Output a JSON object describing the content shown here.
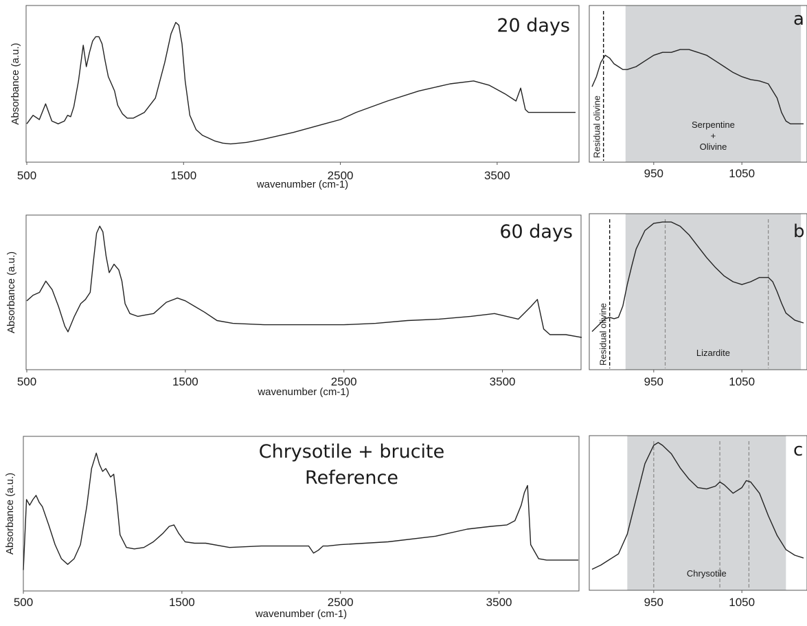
{
  "chart_data": [
    {
      "id": "p20",
      "type": "line",
      "title_lines": [
        "20 days"
      ],
      "xlabel": "wavenumber (cm-1)",
      "ylabel": "Absorbance (a.u.)",
      "xlim": [
        500,
        4000
      ],
      "ylim": [
        0,
        1
      ],
      "xticks": [
        500,
        1500,
        2500,
        3500
      ],
      "x": [
        500,
        540,
        580,
        620,
        660,
        700,
        740,
        760,
        780,
        800,
        830,
        860,
        880,
        900,
        920,
        940,
        960,
        980,
        1000,
        1020,
        1040,
        1060,
        1080,
        1110,
        1140,
        1180,
        1250,
        1320,
        1380,
        1420,
        1450,
        1470,
        1490,
        1510,
        1540,
        1580,
        1620,
        1660,
        1700,
        1750,
        1800,
        1900,
        2000,
        2200,
        2400,
        2500,
        2600,
        2800,
        3000,
        3200,
        3350,
        3450,
        3550,
        3620,
        3650,
        3680,
        3700,
        3720,
        3800,
        3900,
        4000
      ],
      "y": [
        0.22,
        0.28,
        0.25,
        0.36,
        0.24,
        0.22,
        0.24,
        0.28,
        0.27,
        0.34,
        0.52,
        0.77,
        0.62,
        0.72,
        0.8,
        0.83,
        0.83,
        0.78,
        0.66,
        0.55,
        0.5,
        0.45,
        0.35,
        0.29,
        0.26,
        0.26,
        0.3,
        0.4,
        0.65,
        0.85,
        0.93,
        0.91,
        0.78,
        0.52,
        0.28,
        0.18,
        0.14,
        0.12,
        0.1,
        0.085,
        0.08,
        0.09,
        0.11,
        0.16,
        0.22,
        0.25,
        0.3,
        0.38,
        0.45,
        0.5,
        0.52,
        0.49,
        0.43,
        0.38,
        0.47,
        0.32,
        0.3,
        0.3,
        0.3,
        0.3,
        0.3
      ]
    },
    {
      "id": "p60",
      "type": "line",
      "title_lines": [
        "60 days"
      ],
      "xlabel": "wavenumber (cm-1)",
      "ylabel": "Absorbance (a.u.)",
      "xlim": [
        500,
        4000
      ],
      "ylim": [
        0,
        1
      ],
      "xticks": [
        500,
        1500,
        2500,
        3500
      ],
      "x": [
        500,
        540,
        580,
        620,
        660,
        700,
        740,
        760,
        800,
        840,
        870,
        900,
        920,
        940,
        960,
        980,
        1000,
        1020,
        1050,
        1080,
        1100,
        1120,
        1150,
        1200,
        1250,
        1300,
        1380,
        1450,
        1500,
        1560,
        1620,
        1700,
        1800,
        2000,
        2200,
        2500,
        2700,
        2900,
        3100,
        3300,
        3450,
        3600,
        3680,
        3720,
        3760,
        3800,
        3900,
        4000
      ],
      "y": [
        0.44,
        0.48,
        0.5,
        0.58,
        0.52,
        0.4,
        0.26,
        0.22,
        0.33,
        0.42,
        0.45,
        0.5,
        0.72,
        0.92,
        0.97,
        0.93,
        0.76,
        0.64,
        0.7,
        0.66,
        0.58,
        0.42,
        0.35,
        0.33,
        0.34,
        0.35,
        0.43,
        0.46,
        0.44,
        0.4,
        0.36,
        0.3,
        0.28,
        0.27,
        0.27,
        0.27,
        0.28,
        0.3,
        0.31,
        0.33,
        0.35,
        0.31,
        0.4,
        0.45,
        0.24,
        0.2,
        0.2,
        0.18
      ]
    },
    {
      "id": "pref",
      "type": "line",
      "title_lines": [
        "Chrysotile + brucite",
        "Reference"
      ],
      "xlabel": "wavenumber (cm-1)",
      "ylabel": "Absorbance (a.u.)",
      "xlim": [
        500,
        4000
      ],
      "ylim": [
        0,
        1
      ],
      "xticks": [
        500,
        1500,
        2500,
        3500
      ],
      "x": [
        500,
        520,
        540,
        560,
        580,
        600,
        620,
        660,
        700,
        740,
        780,
        820,
        860,
        900,
        930,
        960,
        980,
        1000,
        1020,
        1050,
        1070,
        1090,
        1110,
        1150,
        1200,
        1260,
        1320,
        1380,
        1420,
        1450,
        1480,
        1520,
        1580,
        1650,
        1800,
        2000,
        2200,
        2300,
        2330,
        2360,
        2390,
        2420,
        2500,
        2800,
        3100,
        3300,
        3450,
        3550,
        3600,
        3640,
        3660,
        3680,
        3700,
        3750,
        3800,
        3900,
        4000
      ],
      "y": [
        0.1,
        0.6,
        0.56,
        0.6,
        0.63,
        0.58,
        0.55,
        0.42,
        0.28,
        0.18,
        0.14,
        0.18,
        0.28,
        0.55,
        0.82,
        0.93,
        0.85,
        0.8,
        0.82,
        0.76,
        0.78,
        0.58,
        0.35,
        0.26,
        0.25,
        0.26,
        0.3,
        0.36,
        0.41,
        0.42,
        0.36,
        0.3,
        0.29,
        0.29,
        0.26,
        0.27,
        0.27,
        0.27,
        0.22,
        0.24,
        0.27,
        0.27,
        0.28,
        0.3,
        0.34,
        0.39,
        0.41,
        0.42,
        0.45,
        0.56,
        0.65,
        0.7,
        0.28,
        0.18,
        0.17,
        0.17,
        0.17
      ]
    },
    {
      "id": "pa",
      "type": "line",
      "panel_label": "a",
      "xlim": [
        880,
        1120
      ],
      "ylim": [
        0,
        1
      ],
      "xticks": [
        950,
        1050
      ],
      "shade": [
        918,
        1117
      ],
      "shade_label_lines": [
        "Serpentine",
        "+",
        "Olivine"
      ],
      "vlines": [
        {
          "x": 893,
          "label": "Residual olivine",
          "dark": true
        }
      ],
      "x": [
        880,
        885,
        890,
        895,
        900,
        905,
        910,
        915,
        920,
        930,
        940,
        950,
        960,
        970,
        980,
        990,
        1000,
        1010,
        1020,
        1030,
        1040,
        1050,
        1060,
        1070,
        1080,
        1090,
        1095,
        1100,
        1105,
        1110,
        1120
      ],
      "y": [
        0.48,
        0.55,
        0.65,
        0.7,
        0.68,
        0.64,
        0.62,
        0.6,
        0.6,
        0.62,
        0.66,
        0.7,
        0.72,
        0.72,
        0.74,
        0.74,
        0.72,
        0.7,
        0.66,
        0.62,
        0.58,
        0.55,
        0.53,
        0.52,
        0.5,
        0.4,
        0.3,
        0.24,
        0.22,
        0.22,
        0.22
      ]
    },
    {
      "id": "pb",
      "type": "line",
      "panel_label": "b",
      "xlim": [
        880,
        1120
      ],
      "ylim": [
        0,
        1
      ],
      "xticks": [
        950,
        1050
      ],
      "shade": [
        918,
        1117
      ],
      "shade_label_lines": [
        "Lizardite"
      ],
      "vlines": [
        {
          "x": 900,
          "label": "Residual olivine",
          "dark": true
        },
        {
          "x": 963,
          "label": "",
          "dark": false
        },
        {
          "x": 1080,
          "label": "",
          "dark": false
        }
      ],
      "x": [
        880,
        890,
        895,
        900,
        905,
        910,
        915,
        920,
        925,
        930,
        940,
        950,
        960,
        970,
        980,
        990,
        1000,
        1010,
        1020,
        1030,
        1040,
        1050,
        1060,
        1070,
        1080,
        1085,
        1090,
        1095,
        1100,
        1110,
        1120
      ],
      "y": [
        0.22,
        0.28,
        0.31,
        0.32,
        0.31,
        0.32,
        0.4,
        0.55,
        0.68,
        0.8,
        0.93,
        0.98,
        0.99,
        0.99,
        0.96,
        0.9,
        0.82,
        0.74,
        0.67,
        0.61,
        0.57,
        0.55,
        0.57,
        0.6,
        0.6,
        0.57,
        0.5,
        0.42,
        0.35,
        0.3,
        0.28
      ]
    },
    {
      "id": "pc",
      "type": "line",
      "panel_label": "c",
      "xlim": [
        880,
        1120
      ],
      "ylim": [
        0,
        1
      ],
      "xticks": [
        950,
        1050
      ],
      "shade": [
        920,
        1100
      ],
      "shade_label_lines": [
        "Chrysotile"
      ],
      "vlines": [
        {
          "x": 950,
          "label": "",
          "dark": false
        },
        {
          "x": 1025,
          "label": "",
          "dark": false
        },
        {
          "x": 1058,
          "label": "",
          "dark": false
        }
      ],
      "x": [
        880,
        890,
        900,
        910,
        920,
        930,
        940,
        950,
        955,
        960,
        970,
        980,
        990,
        1000,
        1010,
        1020,
        1025,
        1030,
        1040,
        1050,
        1055,
        1060,
        1070,
        1080,
        1090,
        1100,
        1110,
        1120
      ],
      "y": [
        0.1,
        0.13,
        0.17,
        0.21,
        0.35,
        0.6,
        0.85,
        0.98,
        1.0,
        0.98,
        0.92,
        0.82,
        0.74,
        0.68,
        0.67,
        0.69,
        0.72,
        0.7,
        0.64,
        0.68,
        0.73,
        0.72,
        0.64,
        0.48,
        0.34,
        0.24,
        0.2,
        0.18
      ]
    }
  ]
}
